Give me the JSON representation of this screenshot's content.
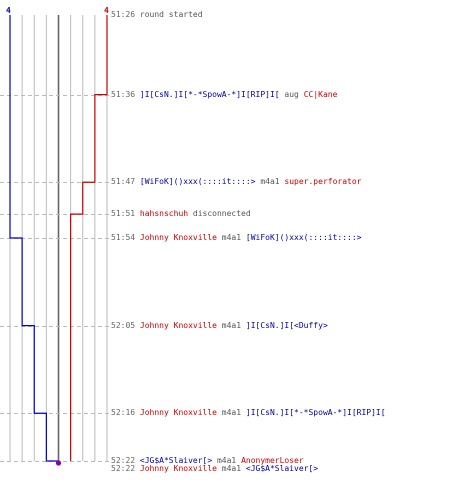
{
  "colors": {
    "blue_team": "#0000cc",
    "red_team": "#cc0000",
    "grid": "#bbbbbb",
    "center": "#666666",
    "dash": "#bbbbbb",
    "marker": "#8800aa"
  },
  "chart_data": {
    "type": "line",
    "xlim": [
      -4,
      4
    ],
    "grid_on": true,
    "series": [
      {
        "team": "blue",
        "steps": [
          {
            "time": "51:26",
            "value": -4
          },
          {
            "time": "51:54",
            "value": -3
          },
          {
            "time": "52:05",
            "value": -2
          },
          {
            "time": "52:16",
            "value": -1
          },
          {
            "time": "52:22",
            "value": 0
          }
        ]
      },
      {
        "team": "red",
        "steps": [
          {
            "time": "51:26",
            "value": 4
          },
          {
            "time": "51:36",
            "value": 3
          },
          {
            "time": "51:47",
            "value": 2
          },
          {
            "time": "51:51",
            "value": 1
          },
          {
            "time": "52:22",
            "value": 1
          }
        ]
      }
    ]
  },
  "scores": {
    "left": "4",
    "right": "4"
  },
  "events": [
    {
      "time": "51:26",
      "parts": [
        {
          "text": "round started",
          "style": "neutral"
        }
      ]
    },
    {
      "time": "51:36",
      "parts": [
        {
          "text": "]I[CsN.]I[*-*SpowA-*]I[RIP]I[",
          "style": "blue"
        },
        {
          "text": " aug ",
          "style": "neutral"
        },
        {
          "text": "CC|Kane",
          "style": "red"
        }
      ]
    },
    {
      "time": "51:47",
      "parts": [
        {
          "text": "[WiFoK]()xxx(::::it::::>",
          "style": "blue"
        },
        {
          "text": " m4a1 ",
          "style": "neutral"
        },
        {
          "text": "super.perforator",
          "style": "red"
        }
      ]
    },
    {
      "time": "51:51",
      "parts": [
        {
          "text": "hahsnschuh",
          "style": "red"
        },
        {
          "text": " disconnected",
          "style": "neutral"
        }
      ]
    },
    {
      "time": "51:54",
      "parts": [
        {
          "text": "Johnny Knoxville",
          "style": "red"
        },
        {
          "text": " m4a1 ",
          "style": "neutral"
        },
        {
          "text": "[WiFoK]()xxx(::::it::::>",
          "style": "blue"
        }
      ]
    },
    {
      "time": "52:05",
      "parts": [
        {
          "text": "Johnny Knoxville",
          "style": "red"
        },
        {
          "text": " m4a1 ",
          "style": "neutral"
        },
        {
          "text": "]I[CsN.]I[<Duffy>",
          "style": "blue"
        }
      ]
    },
    {
      "time": "52:16",
      "parts": [
        {
          "text": "Johnny Knoxville",
          "style": "red"
        },
        {
          "text": " m4a1 ",
          "style": "neutral"
        },
        {
          "text": "]I[CsN.]I[*-*SpowA-*]I[RIP]I[",
          "style": "blue"
        }
      ]
    },
    {
      "time": "52:22",
      "parts": [
        {
          "text": "<JG$A*Slaiver[>",
          "style": "blue"
        },
        {
          "text": "  m4a1 ",
          "style": "neutral"
        },
        {
          "text": "AnonymerLoser",
          "style": "red"
        }
      ]
    },
    {
      "time": "52:22",
      "parts": [
        {
          "text": "Johnny Knoxville",
          "style": "red"
        },
        {
          "text": " m4a1 ",
          "style": "neutral"
        },
        {
          "text": "<JG$A*Slaiver[>",
          "style": "blue"
        }
      ]
    }
  ]
}
